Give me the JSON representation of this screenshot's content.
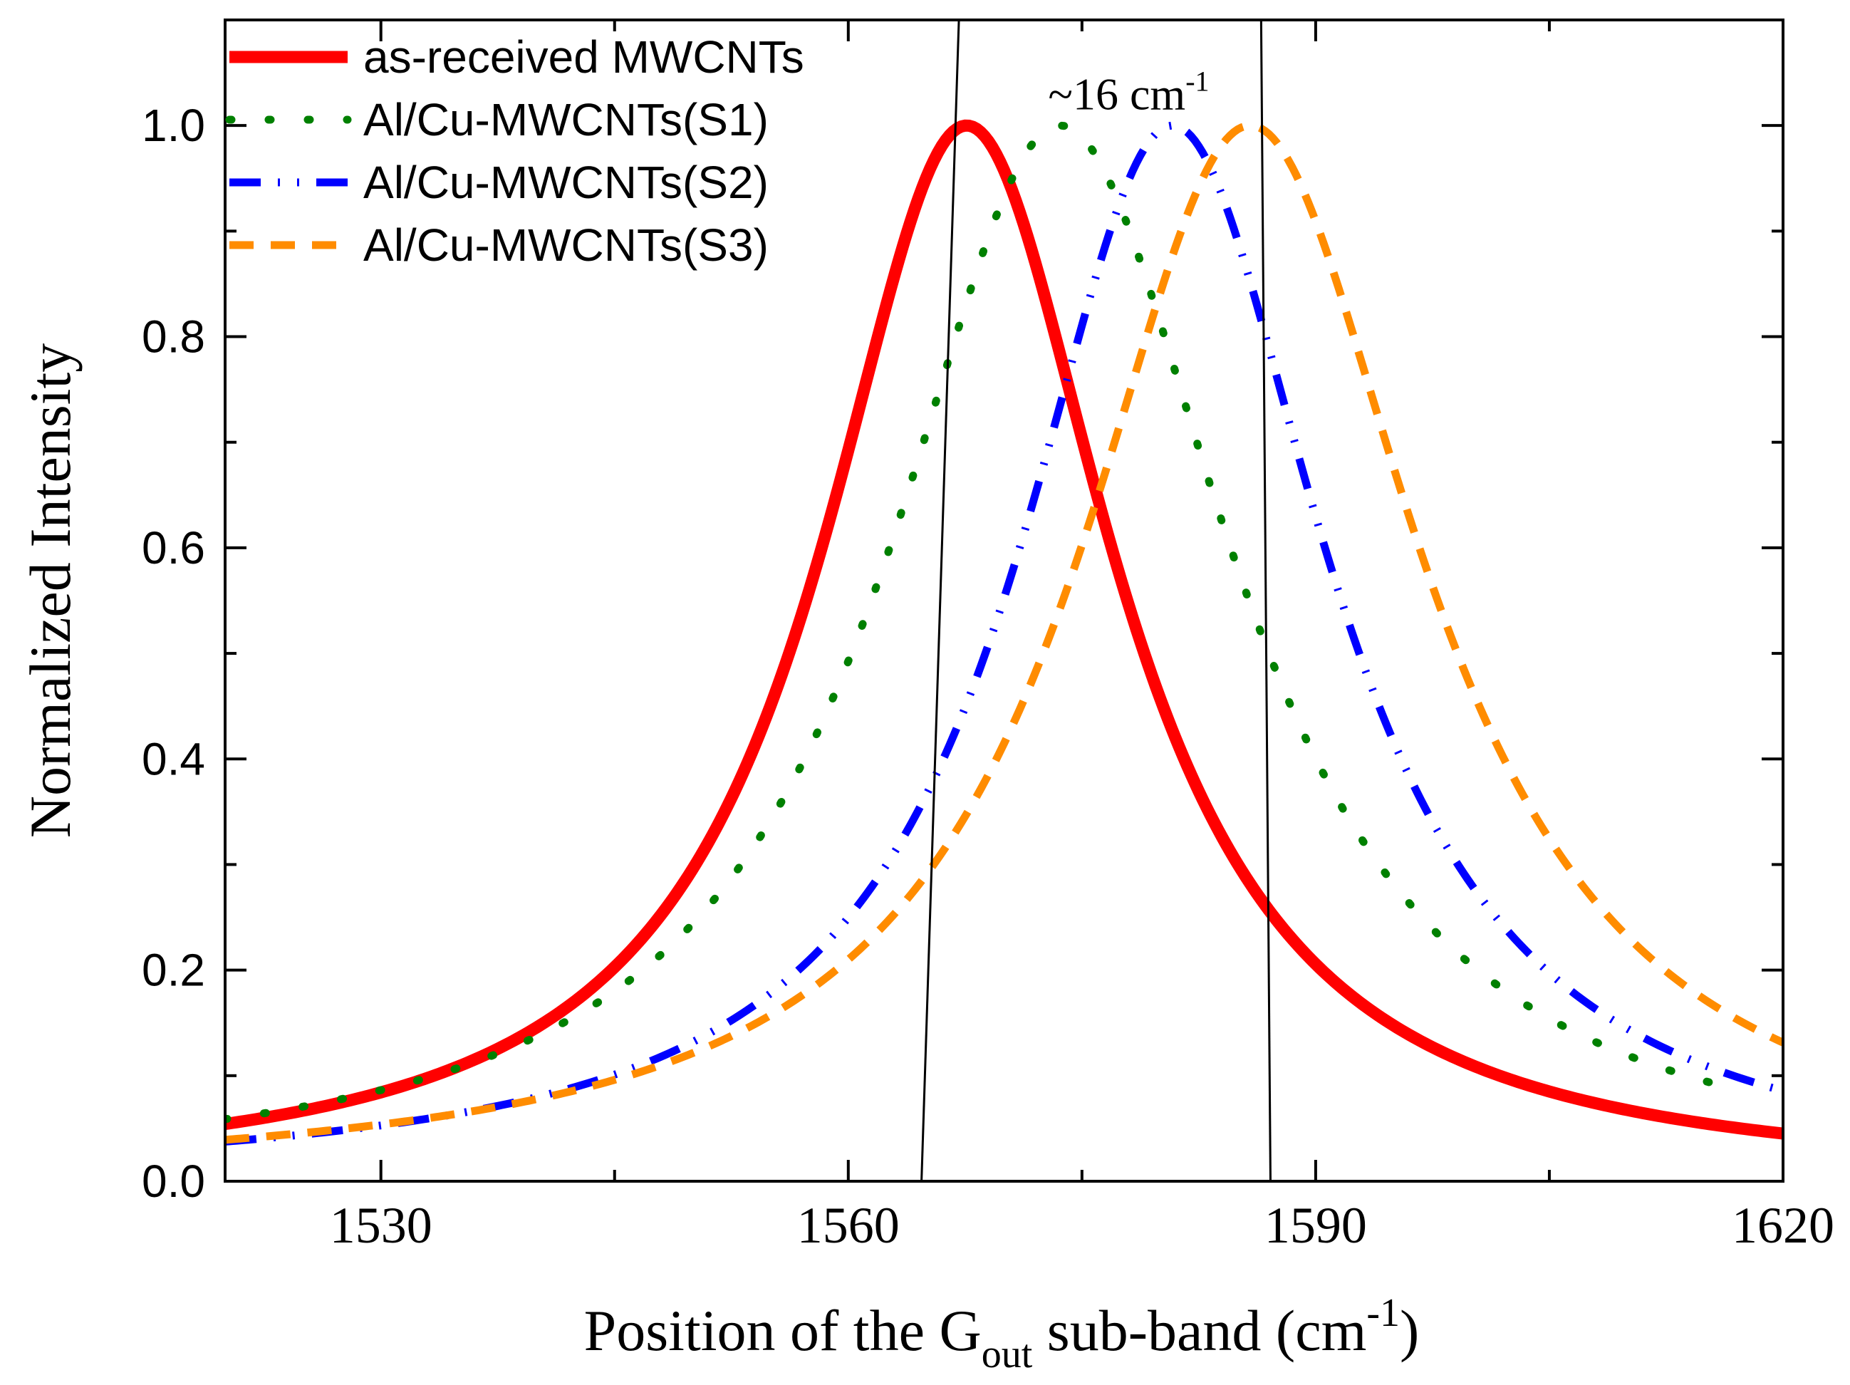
{
  "chart_data": {
    "type": "line",
    "title": "",
    "xlabel": {
      "prefix": "Position of the G",
      "subscript": "out",
      "suffix": " sub-band (cm",
      "superscript": "-1",
      "close": ")"
    },
    "ylabel": "Normalized Intensity",
    "xlim": [
      1520,
      1620
    ],
    "ylim": [
      0,
      1.1
    ],
    "x_major_ticks": [
      1530,
      1560,
      1590,
      1620
    ],
    "x_minor_ticks": [
      1545,
      1575,
      1605
    ],
    "y_major_ticks": [
      0.0,
      0.2,
      0.4,
      0.6,
      0.8,
      1.0
    ],
    "y_minor_ticks": [
      0.1,
      0.3,
      0.5,
      0.7,
      0.9
    ],
    "y_tick_labels": [
      "0.0",
      "0.2",
      "0.4",
      "0.6",
      "0.8",
      "1.0"
    ],
    "x_tick_labels": [
      "1530",
      "1560",
      "1590",
      "1620"
    ],
    "legend_position": "top-left",
    "series": [
      {
        "name": "as-received MWCNTs",
        "center": 1567.6,
        "hwhm": 11.4,
        "x_range": [
          1520,
          1620
        ],
        "color": "#ff0000",
        "dash": "solid"
      },
      {
        "name": "Al/Cu-MWCNTs(S1)",
        "center": 1573.6,
        "hwhm": 13.4,
        "x_range": [
          1520,
          1617.5
        ],
        "color": "#008000",
        "dash": "dot"
      },
      {
        "name": "Al/Cu-MWCNTs(S2)",
        "center": 1580.8,
        "hwhm": 12.0,
        "x_range": [
          1520,
          1620
        ],
        "color": "#0000ff",
        "dash": "dashdotdot"
      },
      {
        "name": "Al/Cu-MWCNTs(S3)",
        "center": 1585.8,
        "hwhm": 13.3,
        "x_range": [
          1520,
          1620
        ],
        "color": "#ff8c00",
        "dash": "dash"
      }
    ],
    "reference_lines": [
      {
        "from": [
          1564.7,
          0.0
        ],
        "to": [
          1567.1,
          1.1
        ],
        "color": "#000000"
      },
      {
        "from": [
          1587.1,
          0.0
        ],
        "to": [
          1586.5,
          1.1
        ],
        "color": "#000000"
      }
    ],
    "annotation": {
      "prefix": "~16 cm",
      "superscript": "-1",
      "x": 1578.0,
      "y": 1.03
    }
  }
}
